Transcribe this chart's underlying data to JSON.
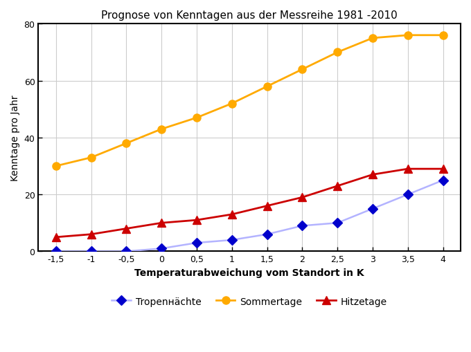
{
  "title": "Prognose von Kenntagen aus der Messreihe 1981 -2010",
  "xlabel": "Temperaturabweichung vom Standort in K",
  "ylabel": "Kenntage pro Jahr",
  "x": [
    -1.5,
    -1.0,
    -0.5,
    0.0,
    0.5,
    1.0,
    1.5,
    2.0,
    2.5,
    3.0,
    3.5,
    4.0
  ],
  "tropennachte": [
    0,
    0,
    0,
    1,
    3,
    4,
    6,
    9,
    10,
    15,
    20,
    25
  ],
  "sommertage": [
    30,
    33,
    38,
    43,
    47,
    52,
    58,
    64,
    70,
    75,
    76,
    76
  ],
  "hitzetage": [
    5,
    6,
    8,
    10,
    11,
    13,
    16,
    19,
    23,
    27,
    29,
    29
  ],
  "xlim": [
    -1.75,
    4.25
  ],
  "ylim": [
    0,
    80
  ],
  "xticks": [
    -1.5,
    -1.0,
    -0.5,
    0.0,
    0.5,
    1.0,
    1.5,
    2.0,
    2.5,
    3.0,
    3.5,
    4.0
  ],
  "yticks": [
    0,
    20,
    40,
    60,
    80
  ],
  "xtick_labels": [
    "-1,5",
    "-1",
    "-0,5",
    "0",
    "0,5",
    "1",
    "1,5",
    "2",
    "2,5",
    "3",
    "3,5",
    "4"
  ],
  "ytick_labels": [
    "0",
    "20",
    "40",
    "60",
    "80"
  ],
  "tropennachte_line_color": "#b3b3ff",
  "tropennachte_marker_color": "#0000cc",
  "sommertage_color": "#ffaa00",
  "sommertage_marker_color": "#ffaa00",
  "hitzetage_color": "#cc0000",
  "background_color": "#ffffff",
  "plot_bg_color": "#ffffff",
  "grid_color": "#cccccc",
  "legend_tropennachte": "Tropenнächte",
  "legend_sommertage": "Sommertage",
  "legend_hitzetage": "Hitzetage",
  "title_fontsize": 11,
  "axis_label_fontsize": 10,
  "tick_fontsize": 9,
  "legend_fontsize": 10
}
